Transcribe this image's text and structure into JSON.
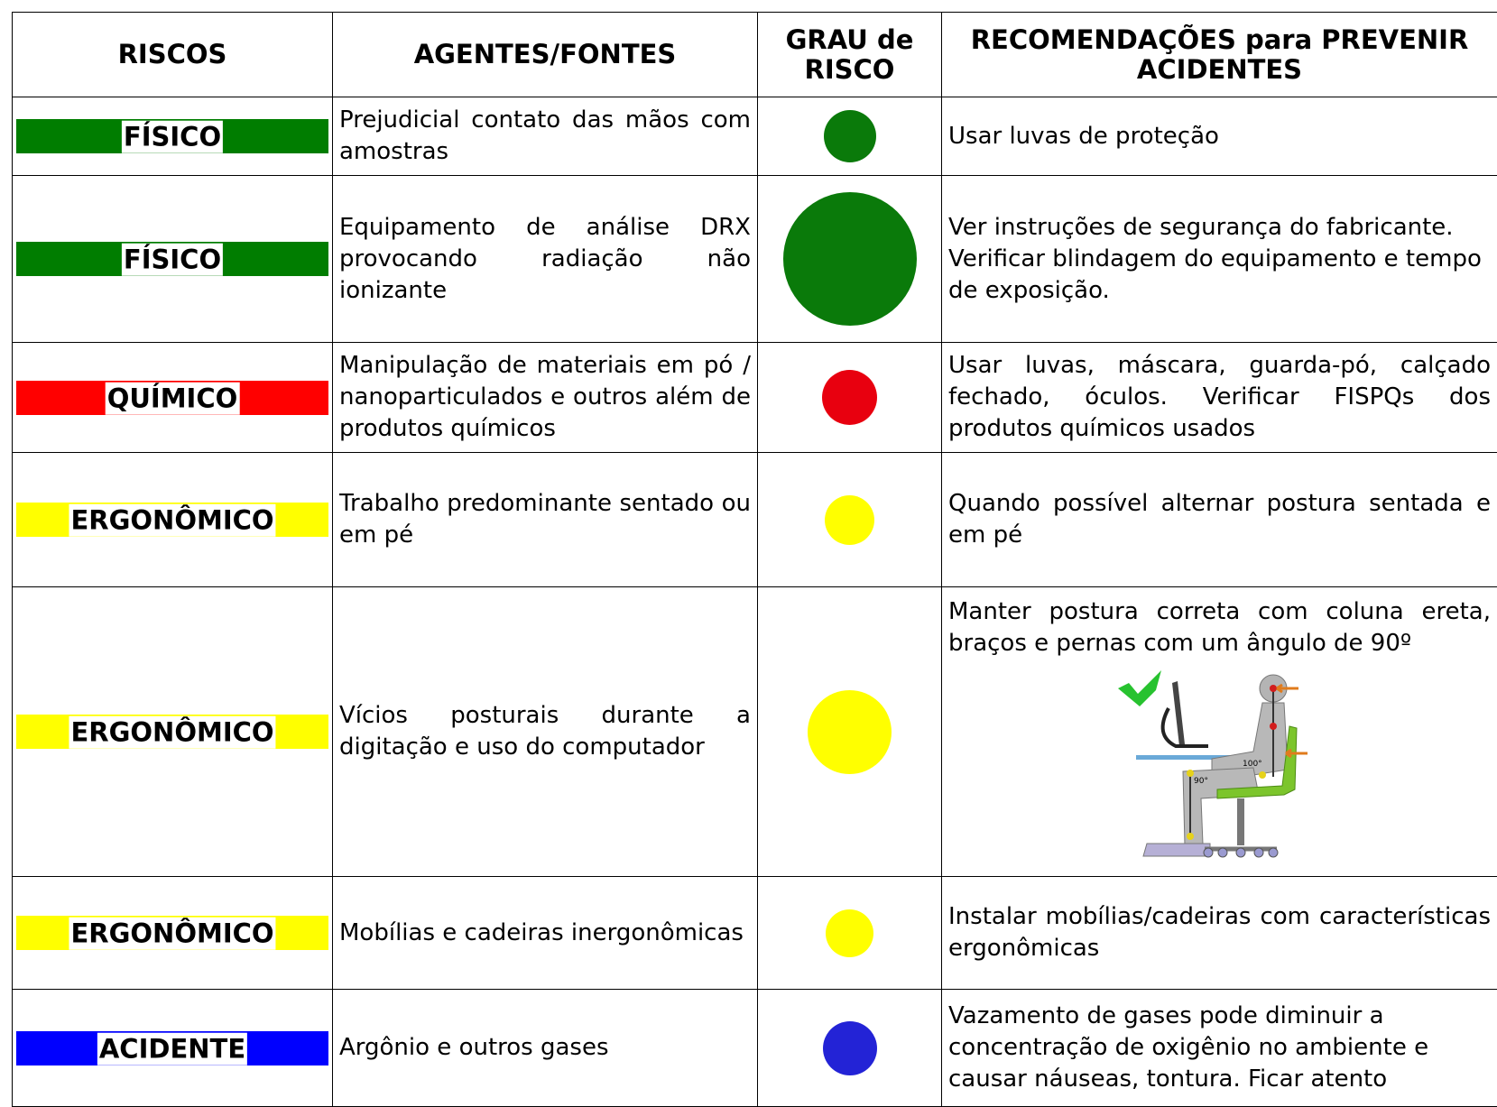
{
  "header": {
    "riscos": "RISCOS",
    "agentes": "AGENTES/FONTES",
    "grau": "GRAU de RISCO",
    "recomendacoes": "RECOMENDAÇÕES para PREVENIR ACIDENTES"
  },
  "rows": [
    {
      "risco": "FÍSICO",
      "color": "#007d00",
      "agente": "Prejudicial contato das mãos com amostras",
      "grau_color": "#0a7a0a",
      "recomendacao": "Usar luvas de proteção"
    },
    {
      "risco": "FÍSICO",
      "color": "#007d00",
      "agente": "Equipamento de análise DRX provocando radiação não ionizante",
      "grau_color": "#0a7a0a",
      "recomendacao": "Ver instruções de segurança do fabricante. Verificar blindagem do equipamento e tempo de exposição."
    },
    {
      "risco": "QUÍMICO",
      "color": "#ff0000",
      "agente": "Manipulação de materiais em pó / nanoparticulados e outros além de produtos químicos",
      "grau_color": "#e8000f",
      "recomendacao": "Usar luvas, máscara, guarda-pó, calçado fechado, óculos. Verificar FISPQs dos produtos químicos usados"
    },
    {
      "risco": "ERGONÔMICO",
      "color": "#ffff00",
      "agente": "Trabalho predominante sentado ou em pé",
      "grau_color": "#ffff00",
      "recomendacao": "Quando possível alternar postura sentada e em pé"
    },
    {
      "risco": "ERGONÔMICO",
      "color": "#ffff00",
      "agente": "Vícios posturais durante a digitação e uso do computador",
      "grau_color": "#ffff00",
      "recomendacao": "Manter postura correta com coluna ereta, braços e pernas com um ângulo de 90º",
      "illustration_labels": [
        "100°",
        "90°"
      ]
    },
    {
      "risco": "ERGONÔMICO",
      "color": "#ffff00",
      "agente": "Mobílias e cadeiras inergonômicas",
      "grau_color": "#ffff00",
      "recomendacao": "Instalar mobílias/cadeiras com características ergonômicas"
    },
    {
      "risco": "ACIDENTE",
      "color": "#0000ff",
      "agente": "Argônio e outros gases",
      "grau_color": "#2323d6",
      "recomendacao": "Vazamento de gases pode diminuir a concentração de oxigênio no ambiente e causar náuseas, tontura. Ficar atento"
    }
  ]
}
